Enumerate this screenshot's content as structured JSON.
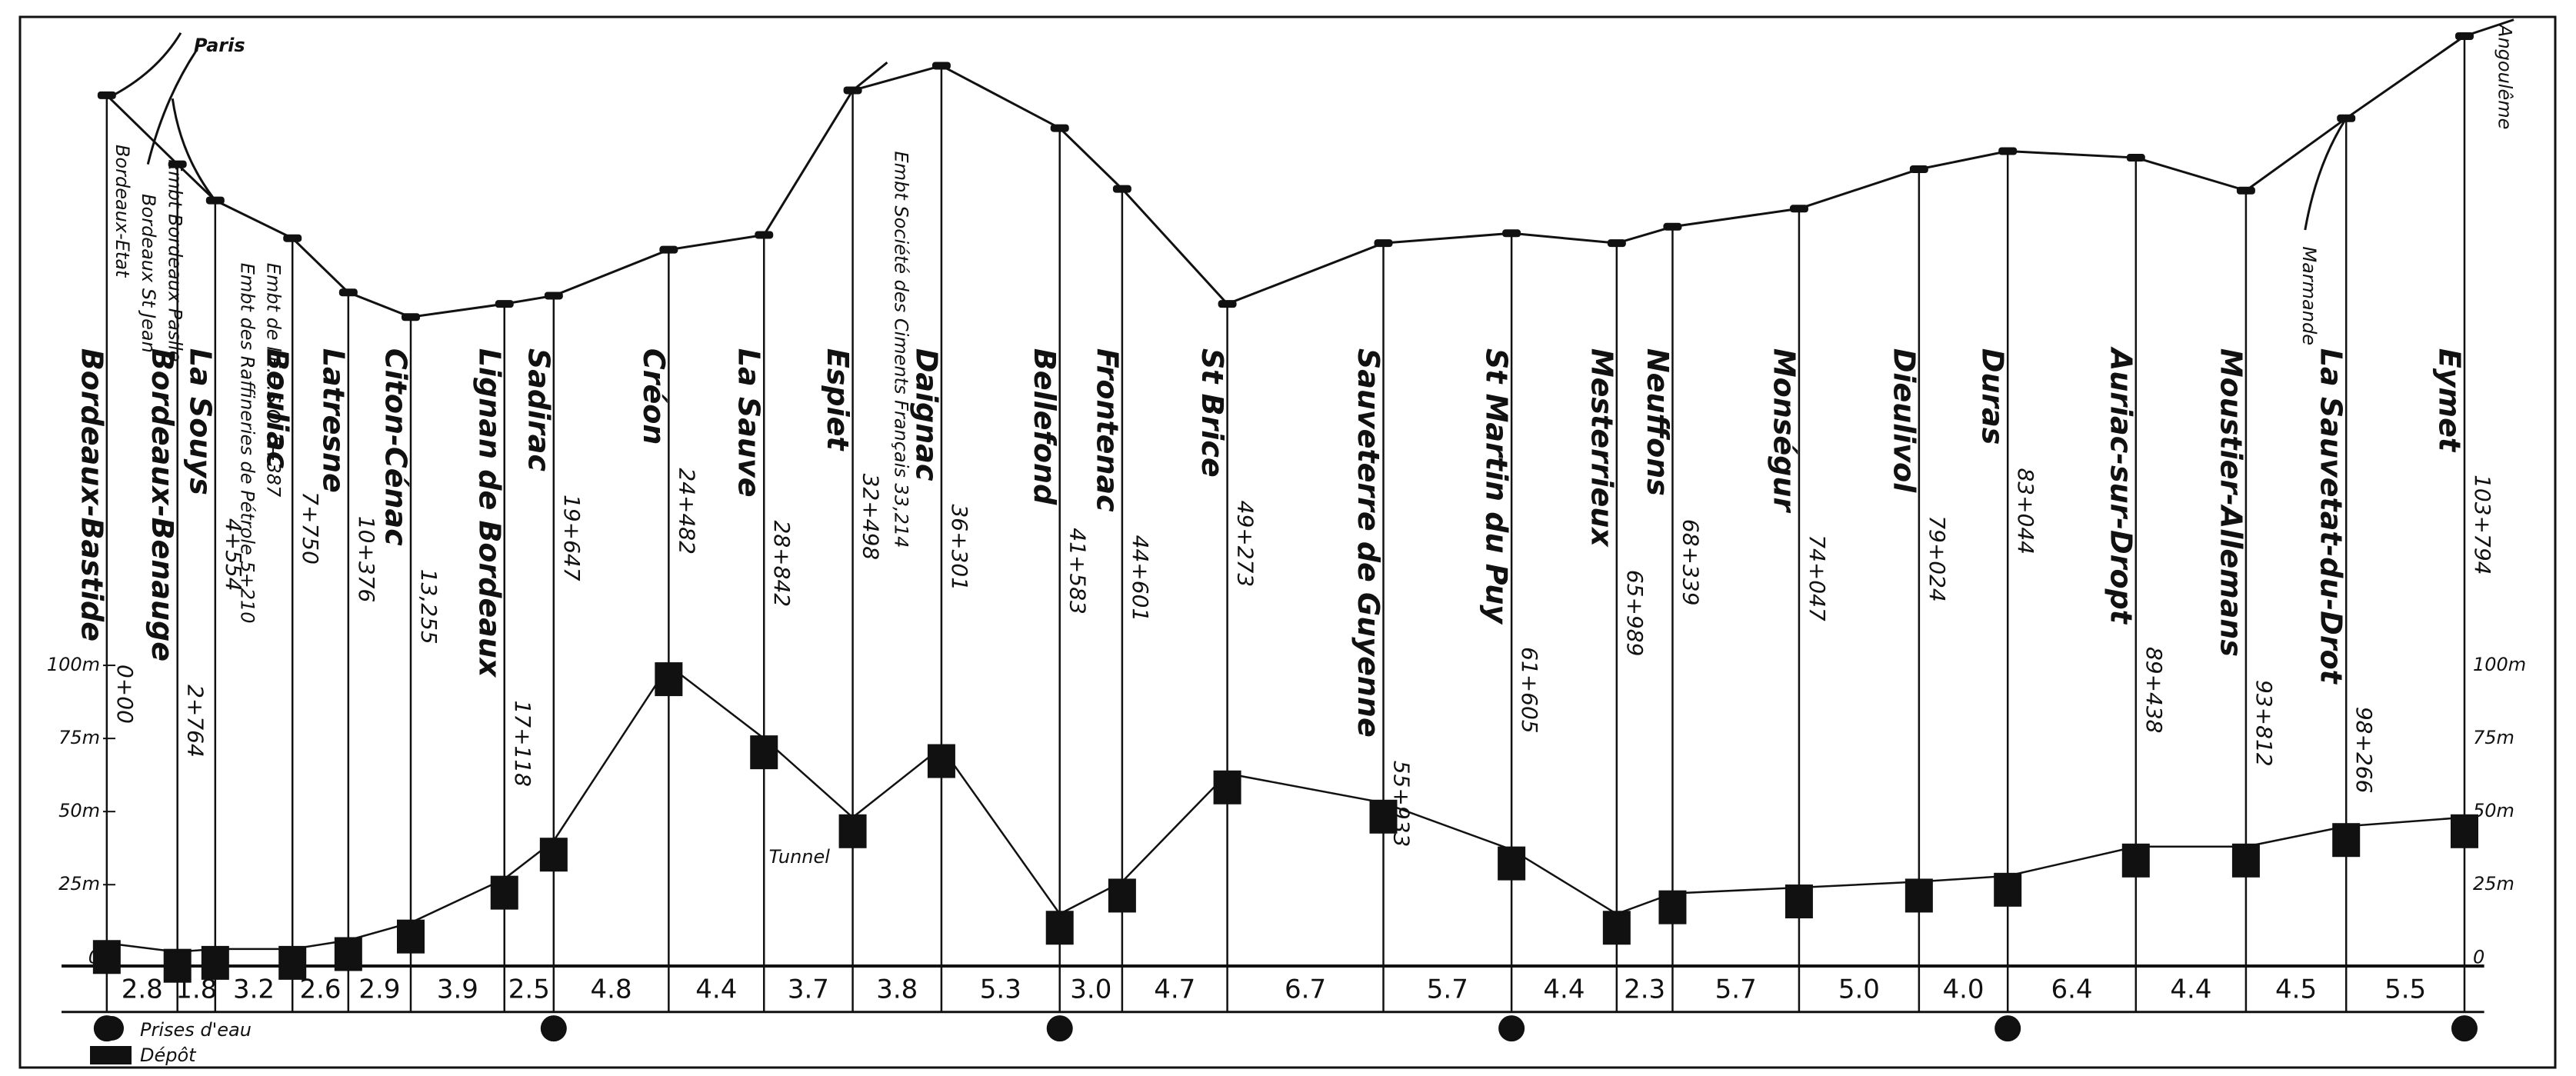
{
  "stations": [
    {
      "name": "Bordeaux-Bastide",
      "km": "0+00",
      "elevation": 5,
      "water": true
    },
    {
      "name": "Bordeaux-Benauge",
      "km": "2+764",
      "elevation": 2,
      "water": false
    },
    {
      "name": "La Souys",
      "km": "4+554",
      "elevation": 3,
      "water": false
    },
    {
      "name": "Bouliac",
      "km": "7+750",
      "elevation": 3,
      "water": false
    },
    {
      "name": "Latresne",
      "km": "10+376",
      "elevation": 6,
      "water": false
    },
    {
      "name": "Citon-Cénac",
      "km": "13,255",
      "elevation": 12,
      "water": false
    },
    {
      "name": "Lignan de Bordeaux",
      "km": "17+118",
      "elevation": 27,
      "water": false
    },
    {
      "name": "Sadirac",
      "km": "19+647",
      "elevation": 40,
      "water": true
    },
    {
      "name": "Créon",
      "km": "24+482",
      "elevation": 100,
      "water": false
    },
    {
      "name": "La Sauve",
      "km": "28+842",
      "elevation": 75,
      "water": false
    },
    {
      "name": "Espiet",
      "km": "32+498",
      "elevation": 48,
      "water": false
    },
    {
      "name": "Daignac",
      "km": "36+301",
      "elevation": 72,
      "water": false
    },
    {
      "name": "Bellefond",
      "km": "41+583",
      "elevation": 15,
      "water": true
    },
    {
      "name": "Frontenac",
      "km": "44+601",
      "elevation": 26,
      "water": false
    },
    {
      "name": "St Brice",
      "km": "49+273",
      "elevation": 63,
      "water": false
    },
    {
      "name": "Sauveterre de Guyenne",
      "km": "55+933",
      "elevation": 53,
      "water": false
    },
    {
      "name": "St Martin du Puy",
      "km": "61+605",
      "elevation": 37,
      "water": true
    },
    {
      "name": "Mesterrieux",
      "km": "65+989",
      "elevation": 15,
      "water": false
    },
    {
      "name": "Neuffons",
      "km": "68+339",
      "elevation": 22,
      "water": false
    },
    {
      "name": "Monségur",
      "km": "74+047",
      "elevation": 24,
      "water": false
    },
    {
      "name": "Dieulivol",
      "km": "79+024",
      "elevation": 26,
      "water": false
    },
    {
      "name": "Duras",
      "km": "83+044",
      "elevation": 28,
      "water": true
    },
    {
      "name": "Auriac-sur-Dropt",
      "km": "89+438",
      "elevation": 38,
      "water": false
    },
    {
      "name": "Moustier-Allemans",
      "km": "93+812",
      "elevation": 38,
      "water": false
    },
    {
      "name": "La Sauvetat-du-Drot",
      "km": "98+266",
      "elevation": 45,
      "water": false
    },
    {
      "name": "Eymet",
      "km": "103+794",
      "elevation": 48,
      "water": true
    }
  ],
  "distances": [
    "2.8",
    "1.8",
    "3.2",
    "2.6",
    "2.9",
    "3.9",
    "2.5",
    "4.8",
    "4.4",
    "3.7",
    "3.8",
    "5.3",
    "3.0",
    "4.7",
    "6.7",
    "5.7",
    "4.4",
    "2.3",
    "5.7",
    "5.0",
    "4.0",
    "6.4",
    "4.4",
    "4.5",
    "5.5"
  ],
  "elevation_axis": {
    "ticks": [
      {
        "value": 100,
        "label": "100m"
      },
      {
        "value": 75,
        "label": "75m"
      },
      {
        "value": 50,
        "label": "50m"
      },
      {
        "value": 25,
        "label": "25m"
      },
      0
    ]
  },
  "annotations": {
    "paris": "Paris",
    "bordeaux_st_jean": "Bordeaux St Jean",
    "bordeaux_etat": "Bordeaux-Etat",
    "bordeaux_paslle": "Embt Bordeaux Paslle",
    "eeso": "Embt de l'E.E.S.O. 5+387",
    "raffineries": "Embt des Raffineries de Pétrole 5+210",
    "ciments": "Embt Société des Ciments Français 33,214",
    "angouleme": "Angoulême",
    "marmande": "Marmande",
    "tunnel": "Tunnel"
  },
  "legend": {
    "water": "Prises d'eau",
    "depot": "Dépôt"
  }
}
